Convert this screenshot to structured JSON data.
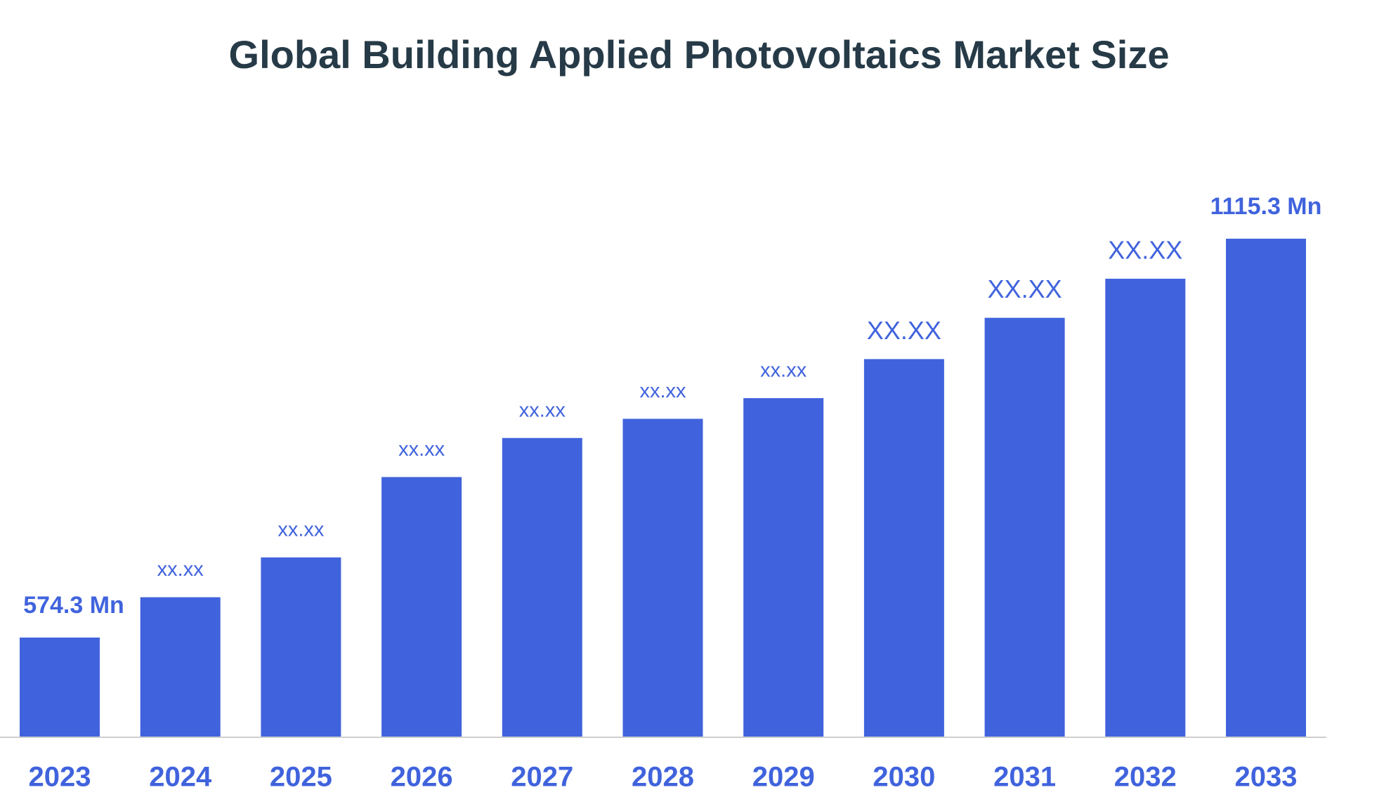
{
  "chart_data": {
    "type": "bar",
    "title": "Global Building Applied Photovoltaics Market Size",
    "categories": [
      "2023",
      "2024",
      "2025",
      "2026",
      "2027",
      "2028",
      "2029",
      "2030",
      "2031",
      "2032",
      "2033"
    ],
    "values": [
      574.3,
      629,
      683,
      792,
      845,
      871,
      899,
      952,
      1008,
      1061,
      1115.3
    ],
    "value_labels": [
      "574.3 Mn",
      "xx.xx",
      "xx.xx",
      "xx.xx",
      "xx.xx",
      "xx.xx",
      "xx.xx",
      "XX.XX",
      "XX.XX",
      "XX.XX",
      "1115.3 Mn"
    ],
    "color": "#4063dd",
    "ylim": [
      440,
      1200
    ]
  }
}
